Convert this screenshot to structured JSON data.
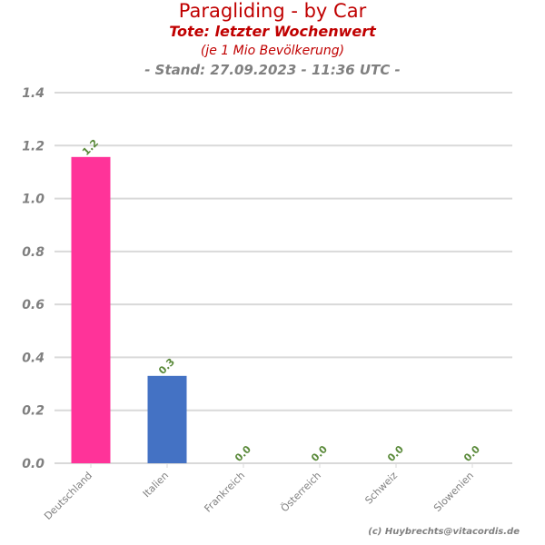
{
  "chart_data": {
    "type": "bar",
    "title": "Paragliding - by Car",
    "subtitles": [
      "Tote: letzter Wochenwert",
      "(je 1 Mio Bevölkerung)",
      "- Stand: 27.09.2023 - 11:36 UTC -"
    ],
    "categories": [
      "Deutschland",
      "Italien",
      "Frankreich",
      "Österreich",
      "Schweiz",
      "Slowenien"
    ],
    "values": [
      1.157,
      0.33,
      0,
      0,
      0,
      0
    ],
    "data_labels": [
      "1.2",
      "0.3",
      "0.0",
      "0.0",
      "0.0",
      "0.0"
    ],
    "bar_colors": [
      "#ff3399",
      "#4472c4",
      "#808080",
      "#808080",
      "#808080",
      "#808080"
    ],
    "ylim": [
      0,
      1.4
    ],
    "yticks": [
      "0.0",
      "0.2",
      "0.4",
      "0.6",
      "0.8",
      "1.0",
      "1.2",
      "1.4"
    ],
    "grid": true,
    "label_color": "#5a8a3a",
    "credit": "(c) Huybrechts@vitacordis.de"
  }
}
